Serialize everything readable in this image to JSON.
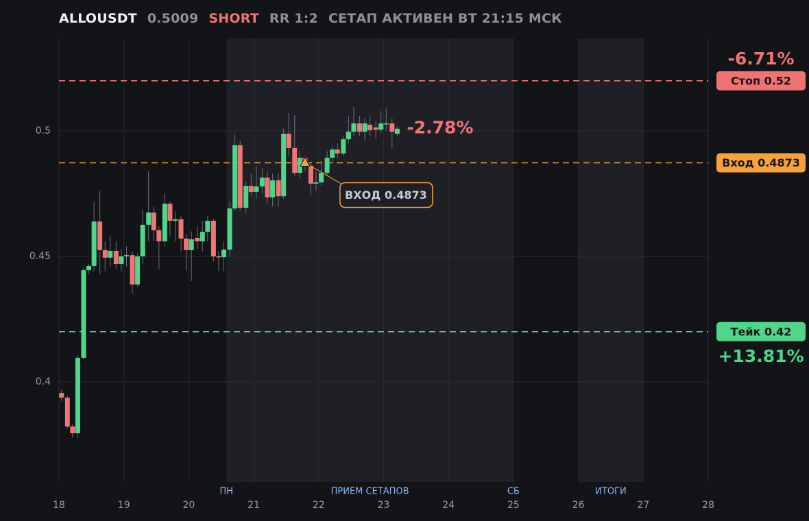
{
  "chart_data": {
    "type": "candlestick",
    "header": {
      "symbol": "ALLOUSDT",
      "last_price": 0.5009,
      "side": "SHORT",
      "rr": "RR 1:2",
      "status": "СЕТАП АКТИВЕН ВТ 21:15 МСК"
    },
    "x": [
      18.04,
      18.13,
      18.21,
      18.29,
      18.38,
      18.46,
      18.54,
      18.63,
      18.71,
      18.79,
      18.88,
      18.96,
      19.04,
      19.13,
      19.21,
      19.29,
      19.38,
      19.46,
      19.54,
      19.63,
      19.71,
      19.79,
      19.88,
      19.96,
      20.04,
      20.13,
      20.21,
      20.29,
      20.38,
      20.46,
      20.54,
      20.63,
      20.71,
      20.79,
      20.88,
      20.96,
      21.04,
      21.13,
      21.21,
      21.29,
      21.38,
      21.46,
      21.54,
      21.63,
      21.71,
      21.79,
      21.88,
      21.96,
      22.04,
      22.13,
      22.21,
      22.29,
      22.38,
      22.46,
      22.54,
      22.63,
      22.71,
      22.79,
      22.88,
      22.96,
      23.04,
      23.13,
      23.21
    ],
    "open": [
      0.3956,
      0.3937,
      0.3822,
      0.3795,
      0.4096,
      0.4445,
      0.4462,
      0.4639,
      0.4525,
      0.4495,
      0.4522,
      0.447,
      0.45,
      0.4505,
      0.4388,
      0.45,
      0.4626,
      0.4675,
      0.4604,
      0.456,
      0.471,
      0.4642,
      0.4648,
      0.4571,
      0.4525,
      0.4574,
      0.456,
      0.4598,
      0.4642,
      0.45,
      0.4497,
      0.4527,
      0.4691,
      0.4943,
      0.4694,
      0.4781,
      0.4757,
      0.4779,
      0.4814,
      0.4735,
      0.4803,
      0.474,
      0.4989,
      0.4932,
      0.4833,
      0.4893,
      0.4861,
      0.479,
      0.4795,
      0.4833,
      0.4893,
      0.4926,
      0.491,
      0.4967,
      0.4997,
      0.503,
      0.4997,
      0.5025,
      0.5014,
      0.5005,
      0.5027,
      0.503,
      0.4989
    ],
    "high": [
      0.397,
      0.3945,
      0.383,
      0.4105,
      0.4456,
      0.447,
      0.4716,
      0.4762,
      0.456,
      0.458,
      0.456,
      0.453,
      0.454,
      0.452,
      0.451,
      0.4686,
      0.4839,
      0.47,
      0.462,
      0.4751,
      0.472,
      0.468,
      0.466,
      0.459,
      0.46,
      0.462,
      0.464,
      0.466,
      0.465,
      0.452,
      0.456,
      0.472,
      0.4986,
      0.496,
      0.48,
      0.483,
      0.486,
      0.485,
      0.484,
      0.483,
      0.483,
      0.501,
      0.5071,
      0.5063,
      0.492,
      0.49,
      0.487,
      0.484,
      0.488,
      0.492,
      0.494,
      0.495,
      0.498,
      0.506,
      0.5096,
      0.506,
      0.505,
      0.506,
      0.504,
      0.508,
      0.509,
      0.505,
      0.502
    ],
    "low": [
      0.3924,
      0.3814,
      0.3779,
      0.3779,
      0.409,
      0.443,
      0.444,
      0.4429,
      0.444,
      0.446,
      0.445,
      0.444,
      0.446,
      0.4352,
      0.438,
      0.447,
      0.456,
      0.456,
      0.445,
      0.454,
      0.458,
      0.456,
      0.452,
      0.4443,
      0.4402,
      0.453,
      0.452,
      0.456,
      0.448,
      0.444,
      0.444,
      0.45,
      0.468,
      0.468,
      0.467,
      0.474,
      0.473,
      0.475,
      0.471,
      0.47,
      0.47,
      0.473,
      0.49,
      0.482,
      0.481,
      0.484,
      0.4743,
      0.476,
      0.478,
      0.482,
      0.487,
      0.489,
      0.49,
      0.495,
      0.498,
      0.498,
      0.496,
      0.498,
      0.497,
      0.499,
      0.5,
      0.493,
      0.498
    ],
    "close": [
      0.3937,
      0.3822,
      0.3795,
      0.4096,
      0.4445,
      0.4462,
      0.4639,
      0.4525,
      0.4495,
      0.4522,
      0.447,
      0.45,
      0.4505,
      0.4388,
      0.45,
      0.4626,
      0.4675,
      0.4604,
      0.456,
      0.471,
      0.4642,
      0.4648,
      0.4571,
      0.4525,
      0.4568,
      0.456,
      0.4598,
      0.4642,
      0.45,
      0.4497,
      0.4527,
      0.4691,
      0.4943,
      0.4694,
      0.4781,
      0.4757,
      0.4779,
      0.4814,
      0.4735,
      0.4803,
      0.474,
      0.4989,
      0.4932,
      0.4833,
      0.4893,
      0.4861,
      0.479,
      0.4795,
      0.4833,
      0.4893,
      0.4926,
      0.491,
      0.4967,
      0.4997,
      0.503,
      0.4997,
      0.503,
      0.5003,
      0.5005,
      0.503,
      0.503,
      0.4997,
      0.5009
    ],
    "up_color": "#4fd68b",
    "down_color": "#f07575",
    "xlim": [
      18,
      28
    ],
    "xticks": [
      18,
      19,
      20,
      21,
      22,
      23,
      24,
      25,
      26,
      27,
      28
    ],
    "ylim": [
      0.3601,
      0.5369
    ],
    "yticks": [
      0.4,
      0.45,
      0.5
    ],
    "grid": true,
    "regions": [
      {
        "x0": 20.58,
        "x1": 25,
        "label": "ПРИЕМ СЕТАПОВ",
        "start_label": "ПН",
        "end_label": "СБ"
      },
      {
        "x0": 26,
        "x1": 27,
        "label": "ИТОГИ"
      }
    ],
    "levels": [
      {
        "label": "Стоп 0.52",
        "value": 0.52,
        "color": "#f07272",
        "pct": "-6.71%"
      },
      {
        "label": "Вход 0.4873",
        "value": 0.4873,
        "color": "#f7a13a"
      },
      {
        "label": "Тейк 0.42",
        "value": 0.42,
        "color": "#4fd68b",
        "pct": "+13.81%",
        "pct_below": true
      }
    ],
    "current_pct": "-2.78%",
    "entry_marker": {
      "x": 21.79,
      "y": 0.4873,
      "label": "ВХОД 0.4873"
    }
  }
}
